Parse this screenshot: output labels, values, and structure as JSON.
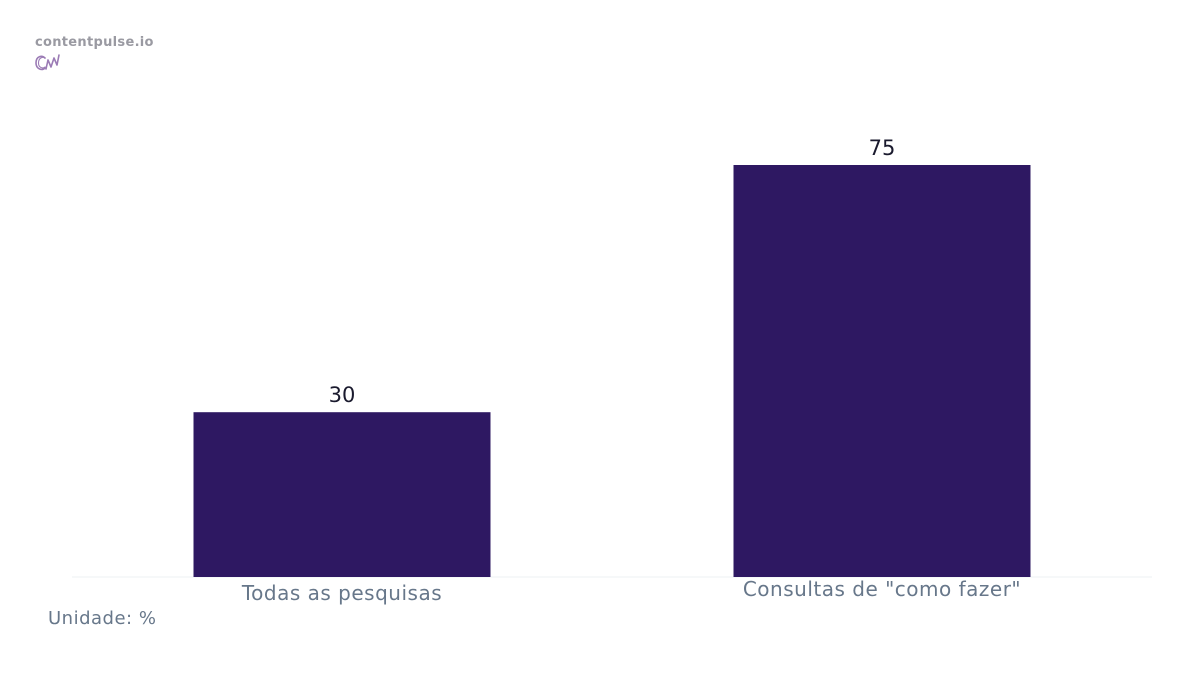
{
  "brand": {
    "name": "contentpulse.io",
    "logo_icon": "cp-monogram-icon",
    "logo_color": "#9b7bb5"
  },
  "chart_data": {
    "type": "bar",
    "categories": [
      "Todas as pesquisas",
      "Consultas de \"como fazer\""
    ],
    "values": [
      30,
      75
    ],
    "value_labels": [
      "30",
      "75"
    ],
    "title": "",
    "xlabel": "",
    "ylabel": "",
    "ylim": [
      0,
      75
    ],
    "grid": false,
    "bar_color": "#2e1862",
    "unit_note": "Unidade: %"
  }
}
